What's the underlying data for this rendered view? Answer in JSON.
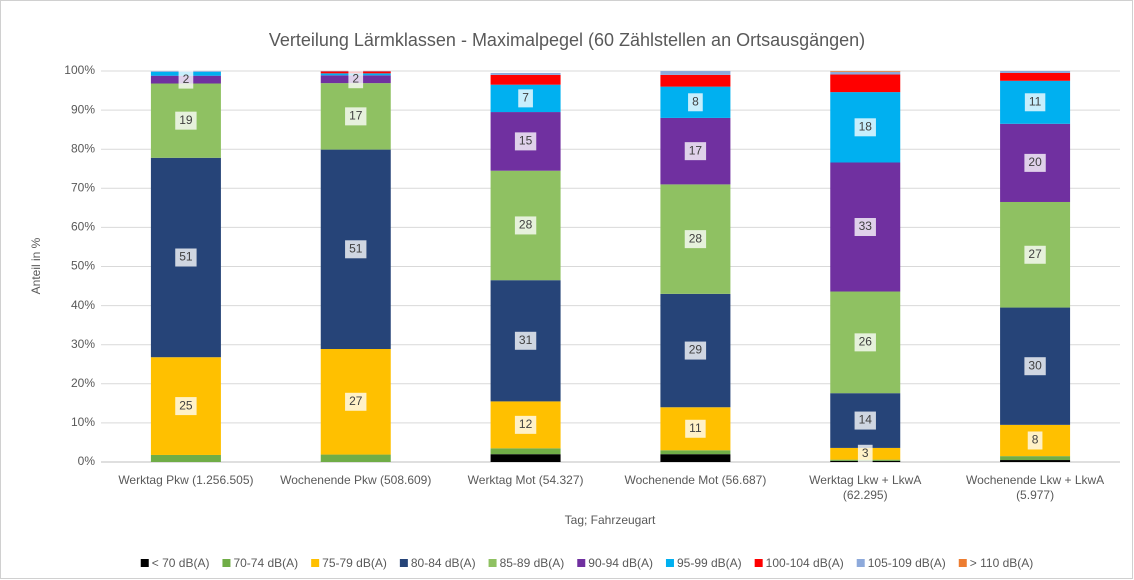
{
  "chart_data": {
    "type": "stacked_bar",
    "title": "Verteilung Lärmklassen - Maximalpegel (60 Zählstellen an Ortsausgängen)",
    "x_label": "Tag; Fahrzeugart",
    "y_label": "Anteil in %",
    "categories": [
      "Werktag Pkw (1.256.505)",
      "Wochenende Pkw (508.609)",
      "Werktag Mot (54.327)",
      "Wochenende Mot (56.687)",
      "Werktag Lkw + LkwA (62.295)",
      "Wochenende Lkw + LkwA (5.977)"
    ],
    "ylim": [
      0,
      100
    ],
    "yticks": [
      {
        "value": 0,
        "label": "0%"
      },
      {
        "value": 10,
        "label": "10%"
      },
      {
        "value": 20,
        "label": "20%"
      },
      {
        "value": 30,
        "label": "30%"
      },
      {
        "value": 40,
        "label": "40%"
      },
      {
        "value": 50,
        "label": "50%"
      },
      {
        "value": 60,
        "label": "60%"
      },
      {
        "value": 70,
        "label": "70%"
      },
      {
        "value": 80,
        "label": "80%"
      },
      {
        "value": 90,
        "label": "90%"
      },
      {
        "value": 100,
        "label": "100%"
      }
    ],
    "grid": true,
    "legend": "bottom",
    "series": [
      {
        "name": "< 70 dB(A)",
        "color": "#000000",
        "values": [
          0,
          0,
          2,
          2,
          0.3,
          0.5
        ],
        "value_labels": [
          null,
          null,
          null,
          null,
          null,
          null
        ]
      },
      {
        "name": "70-74 dB(A)",
        "color": "#70ad47",
        "values": [
          1.8,
          1.9,
          1.5,
          1,
          0.3,
          1
        ],
        "value_labels": [
          null,
          null,
          null,
          null,
          null,
          null
        ]
      },
      {
        "name": "75-79 dB(A)",
        "color": "#ffc000",
        "values": [
          25,
          27,
          12,
          11,
          3,
          8
        ],
        "value_labels": [
          "25",
          "27",
          "12",
          "11",
          "3",
          "8"
        ]
      },
      {
        "name": "80-84 dB(A)",
        "color": "#264478",
        "values": [
          51,
          51,
          31,
          29,
          14,
          30
        ],
        "value_labels": [
          "51",
          "51",
          "31",
          "29",
          "14",
          "30"
        ]
      },
      {
        "name": "85-89 dB(A)",
        "color": "#8fc162",
        "values": [
          19,
          17,
          28,
          28,
          26,
          27
        ],
        "value_labels": [
          "19",
          "17",
          "28",
          "28",
          "26",
          "27"
        ]
      },
      {
        "name": "90-94 dB(A)",
        "color": "#7030a0",
        "values": [
          2,
          2,
          15,
          17,
          33,
          20
        ],
        "value_labels": [
          "2",
          "2",
          "15",
          "17",
          "33",
          "20"
        ]
      },
      {
        "name": "95-99 dB(A)",
        "color": "#00b0f0",
        "values": [
          1,
          0.5,
          7,
          8,
          18,
          11
        ],
        "value_labels": [
          null,
          null,
          "7",
          "8",
          "18",
          "11"
        ]
      },
      {
        "name": "100-104 dB(A)",
        "color": "#ff0000",
        "values": [
          0,
          0.5,
          2.5,
          3,
          4.5,
          2
        ],
        "value_labels": [
          null,
          null,
          null,
          null,
          null,
          null
        ]
      },
      {
        "name": "105-109 dB(A)",
        "color": "#8eaadb",
        "values": [
          0.2,
          0.1,
          0.5,
          1,
          0.7,
          0.5
        ],
        "value_labels": [
          null,
          null,
          null,
          null,
          null,
          null
        ]
      },
      {
        "name": "> 110 dB(A)",
        "color": "#ed7d31",
        "values": [
          0,
          0,
          0,
          0,
          0.2,
          0
        ],
        "value_labels": [
          null,
          null,
          null,
          null,
          null,
          null
        ]
      }
    ]
  }
}
